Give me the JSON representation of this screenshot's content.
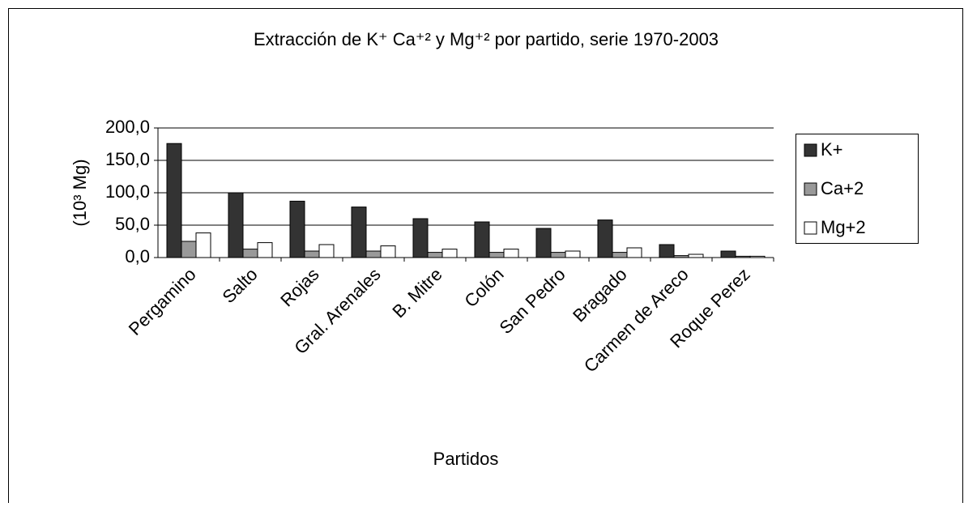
{
  "chart_data": {
    "type": "bar",
    "title": "Extracción de K⁺ Ca⁺² y Mg⁺² por partido, serie 1970-2003",
    "x_label": "Partidos",
    "y_label": "(10³ Mg)",
    "categories": [
      "Pergamino",
      "Salto",
      "Rojas",
      "Gral. Arenales",
      "B. Mitre",
      "Colón",
      "San Pedro",
      "Bragado",
      "Carmen de Areco",
      "Roque Perez"
    ],
    "series": [
      {
        "name": "K+",
        "color": "#333333",
        "values": [
          176,
          100,
          87,
          78,
          60,
          55,
          45,
          58,
          20,
          10
        ]
      },
      {
        "name": "Ca+2",
        "color": "#999999",
        "values": [
          25,
          13,
          10,
          10,
          8,
          8,
          8,
          8,
          3,
          2
        ]
      },
      {
        "name": "Mg+2",
        "color": "#ffffff",
        "values": [
          38,
          23,
          20,
          18,
          13,
          13,
          10,
          15,
          5,
          2
        ]
      }
    ],
    "ylim": [
      0,
      200
    ],
    "yticks": [
      {
        "value": 0,
        "label": "0,0"
      },
      {
        "value": 50,
        "label": "50,0"
      },
      {
        "value": 100,
        "label": "100,0"
      },
      {
        "value": 150,
        "label": "150,0"
      },
      {
        "value": 200,
        "label": "200,0"
      }
    ],
    "grid": true,
    "legend": "right"
  }
}
